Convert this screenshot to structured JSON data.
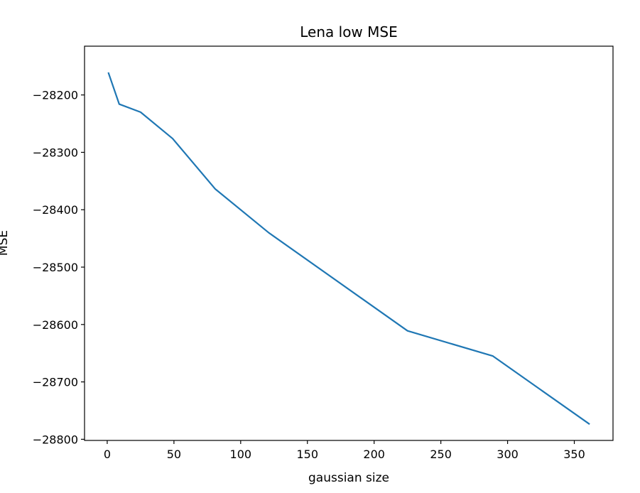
{
  "chart_data": {
    "type": "line",
    "title": "Lena low MSE",
    "xlabel": "gaussian size",
    "ylabel": "MSE",
    "xlim": [
      -17,
      379
    ],
    "ylim": [
      -28802,
      -28115
    ],
    "xticks": [
      0,
      50,
      100,
      150,
      200,
      250,
      300,
      350
    ],
    "yticks": [
      -28200,
      -28300,
      -28400,
      -28500,
      -28600,
      -28700,
      -28800
    ],
    "xtick_labels": [
      "0",
      "50",
      "100",
      "150",
      "200",
      "250",
      "300",
      "350"
    ],
    "ytick_labels": [
      "−28200",
      "−28300",
      "−28400",
      "−28500",
      "−28600",
      "−28700",
      "−28800"
    ],
    "grid": false,
    "series": [
      {
        "color": "#1f77b4",
        "x": [
          1,
          9,
          25,
          49,
          81,
          121,
          225,
          289,
          361
        ],
        "y": [
          -28162,
          -28216,
          -28230,
          -28276,
          -28364,
          -28440,
          -28611,
          -28655,
          -28773
        ]
      }
    ]
  }
}
